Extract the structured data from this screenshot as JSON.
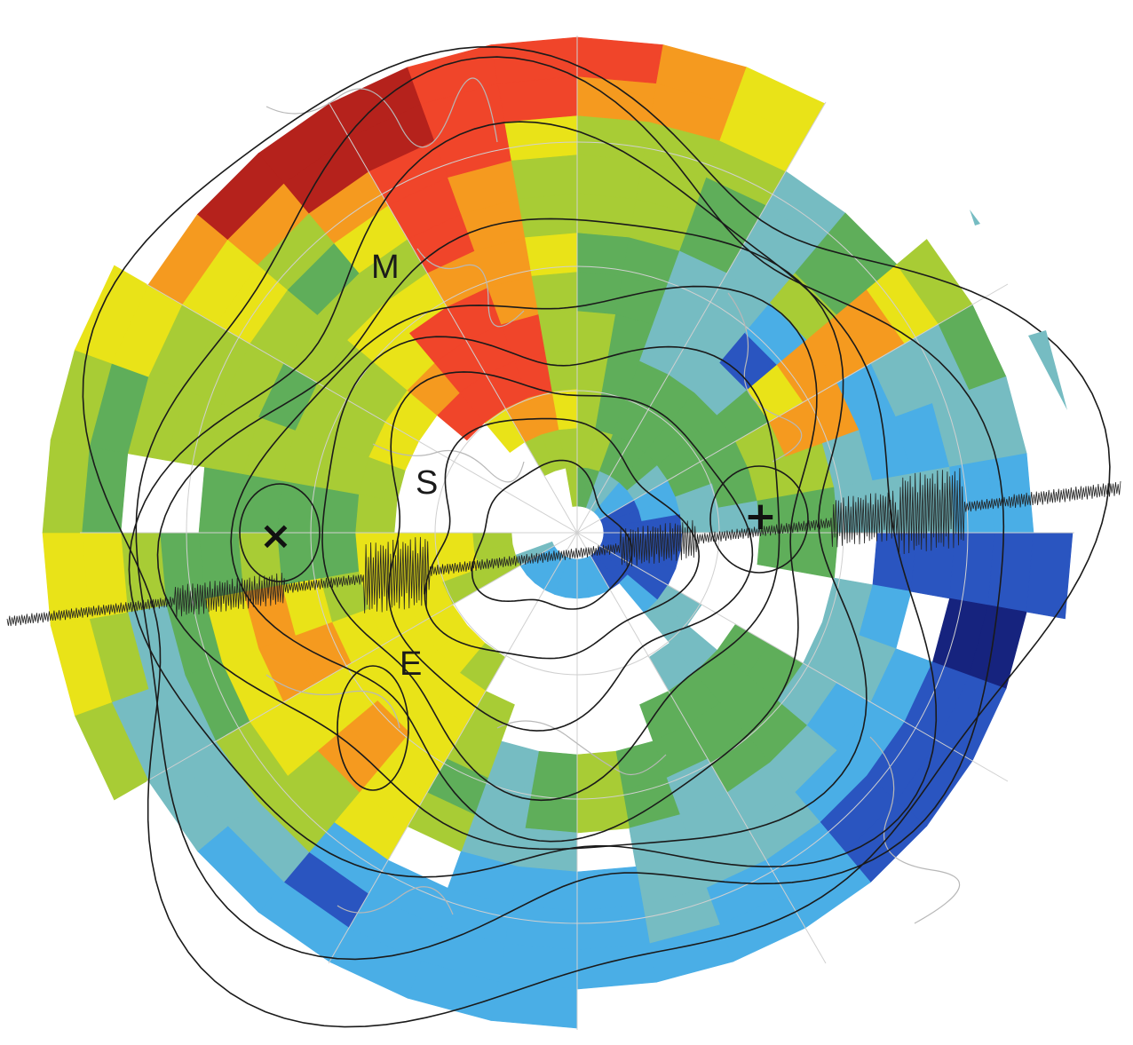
{
  "labels": {
    "M": "M",
    "S": "S",
    "E": "E"
  },
  "markers": {
    "cross": "×",
    "plus": "+"
  },
  "colors": {
    "deep_red": "#b5221c",
    "red": "#f0452a",
    "orange": "#f59a1f",
    "yellow": "#e9e318",
    "yellow_green": "#a8cc35",
    "green": "#5fae5a",
    "teal": "#76bcc2",
    "light_blue": "#4aaee6",
    "blue": "#2a55c0",
    "navy": "#16237e",
    "contour": "#1a1a1a",
    "coast": "#b8b8b8"
  }
}
